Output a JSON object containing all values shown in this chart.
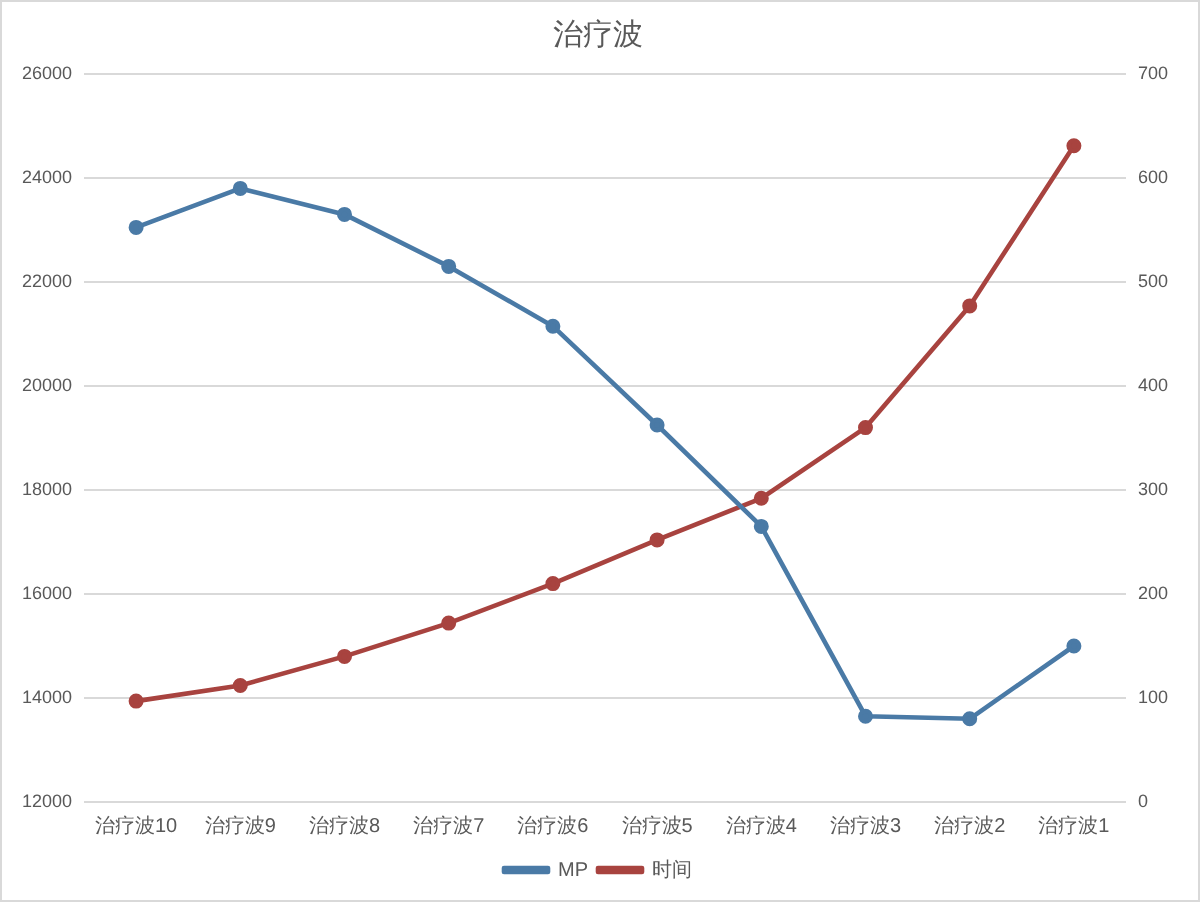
{
  "chart_data": {
    "type": "line",
    "title": "治疗波",
    "categories": [
      "治疗波10",
      "治疗波9",
      "治疗波8",
      "治疗波7",
      "治疗波6",
      "治疗波5",
      "治疗波4",
      "治疗波3",
      "治疗波2",
      "治疗波1"
    ],
    "series": [
      {
        "name": "MP",
        "color": "#4a7aa6",
        "values": [
          23050,
          23800,
          23300,
          22300,
          21150,
          19250,
          17300,
          13650,
          13600,
          15000
        ]
      },
      {
        "name": "时间",
        "color": "#a8433f",
        "axis": "y2",
        "values": [
          97,
          112,
          140,
          172,
          210,
          252,
          292,
          360,
          477,
          631
        ]
      }
    ],
    "ylim": [
      12000,
      26000
    ],
    "yticks": [
      12000,
      14000,
      16000,
      18000,
      20000,
      22000,
      24000,
      26000
    ],
    "y2lim": [
      0,
      700
    ],
    "y2ticks": [
      0,
      100,
      200,
      300,
      400,
      500,
      600,
      700
    ],
    "grid": "y",
    "legend": "bottom",
    "marker": "circle"
  }
}
